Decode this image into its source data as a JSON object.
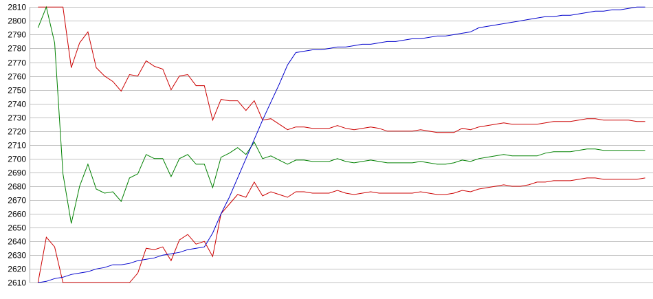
{
  "chart_data": {
    "type": "line",
    "title": "",
    "xlabel": "",
    "ylabel": "",
    "ylim": [
      2610,
      2810
    ],
    "yticks": [
      "2610",
      "2620",
      "2630",
      "2640",
      "2650",
      "2660",
      "2670",
      "2680",
      "2690",
      "2700",
      "2710",
      "2720",
      "2730",
      "2740",
      "2750",
      "2760",
      "2770",
      "2780",
      "2790",
      "2800",
      "2810"
    ],
    "grid": true,
    "legend": "none",
    "series": [
      {
        "color": "#cc0000",
        "values": [
          2810,
          2810,
          2810,
          2810,
          2766,
          2784,
          2792,
          2766,
          2760,
          2756,
          2749,
          2761,
          2760,
          2771,
          2767,
          2765,
          2750,
          2760,
          2761,
          2753,
          2753,
          2728,
          2743,
          2742,
          2742,
          2735,
          2742,
          2728,
          2729,
          2725,
          2721,
          2723,
          2723,
          2722,
          2722,
          2722,
          2724,
          2722,
          2721,
          2722,
          2723,
          2722,
          2720,
          2720,
          2720,
          2720,
          2721,
          2720,
          2719,
          2719,
          2719,
          2722,
          2721,
          2723,
          2724,
          2725,
          2726,
          2725,
          2725,
          2725,
          2725,
          2726,
          2727,
          2727,
          2727,
          2728,
          2729,
          2729,
          2728,
          2728,
          2728,
          2728,
          2727,
          2727
        ]
      },
      {
        "color": "#008000",
        "values": [
          2795,
          2810,
          2784,
          2689,
          2653,
          2680,
          2696,
          2678,
          2675,
          2676,
          2669,
          2686,
          2689,
          2703,
          2700,
          2700,
          2687,
          2700,
          2703,
          2696,
          2696,
          2679,
          2701,
          2704,
          2708,
          2703,
          2712,
          2700,
          2702,
          2699,
          2696,
          2699,
          2699,
          2698,
          2698,
          2698,
          2700,
          2698,
          2697,
          2698,
          2699,
          2698,
          2697,
          2697,
          2697,
          2697,
          2698,
          2697,
          2696,
          2696,
          2697,
          2699,
          2698,
          2700,
          2701,
          2702,
          2703,
          2702,
          2702,
          2702,
          2702,
          2704,
          2705,
          2705,
          2705,
          2706,
          2707,
          2707,
          2706,
          2706,
          2706,
          2706,
          2706,
          2706
        ]
      },
      {
        "color": "#cc0000",
        "values": [
          2610,
          2643,
          2636,
          2610,
          2610,
          2610,
          2610,
          2610,
          2610,
          2610,
          2610,
          2610,
          2617,
          2635,
          2634,
          2636,
          2626,
          2641,
          2645,
          2638,
          2640,
          2629,
          2660,
          2667,
          2674,
          2672,
          2683,
          2673,
          2676,
          2674,
          2672,
          2676,
          2676,
          2675,
          2675,
          2675,
          2677,
          2675,
          2674,
          2675,
          2676,
          2675,
          2675,
          2675,
          2675,
          2675,
          2676,
          2675,
          2674,
          2674,
          2675,
          2677,
          2676,
          2678,
          2679,
          2680,
          2681,
          2680,
          2680,
          2681,
          2683,
          2683,
          2684,
          2684,
          2684,
          2685,
          2686,
          2686,
          2685,
          2685,
          2685,
          2685,
          2685,
          2686
        ]
      },
      {
        "color": "#0000cc",
        "values": [
          2610,
          2611,
          2613,
          2614,
          2616,
          2617,
          2618,
          2620,
          2621,
          2623,
          2623,
          2624,
          2626,
          2627,
          2628,
          2630,
          2631,
          2632,
          2634,
          2635,
          2636,
          2646,
          2660,
          2672,
          2686,
          2700,
          2714,
          2728,
          2741,
          2754,
          2768,
          2777,
          2778,
          2779,
          2779,
          2780,
          2781,
          2781,
          2782,
          2783,
          2783,
          2784,
          2785,
          2785,
          2786,
          2787,
          2787,
          2788,
          2789,
          2789,
          2790,
          2791,
          2792,
          2795,
          2796,
          2797,
          2798,
          2799,
          2800,
          2801,
          2802,
          2803,
          2803,
          2804,
          2804,
          2805,
          2806,
          2807,
          2807,
          2808,
          2808,
          2809,
          2810,
          2810
        ]
      }
    ]
  },
  "colors": {
    "grid": "#c0c0c0",
    "axis": "#a0a0a0"
  }
}
